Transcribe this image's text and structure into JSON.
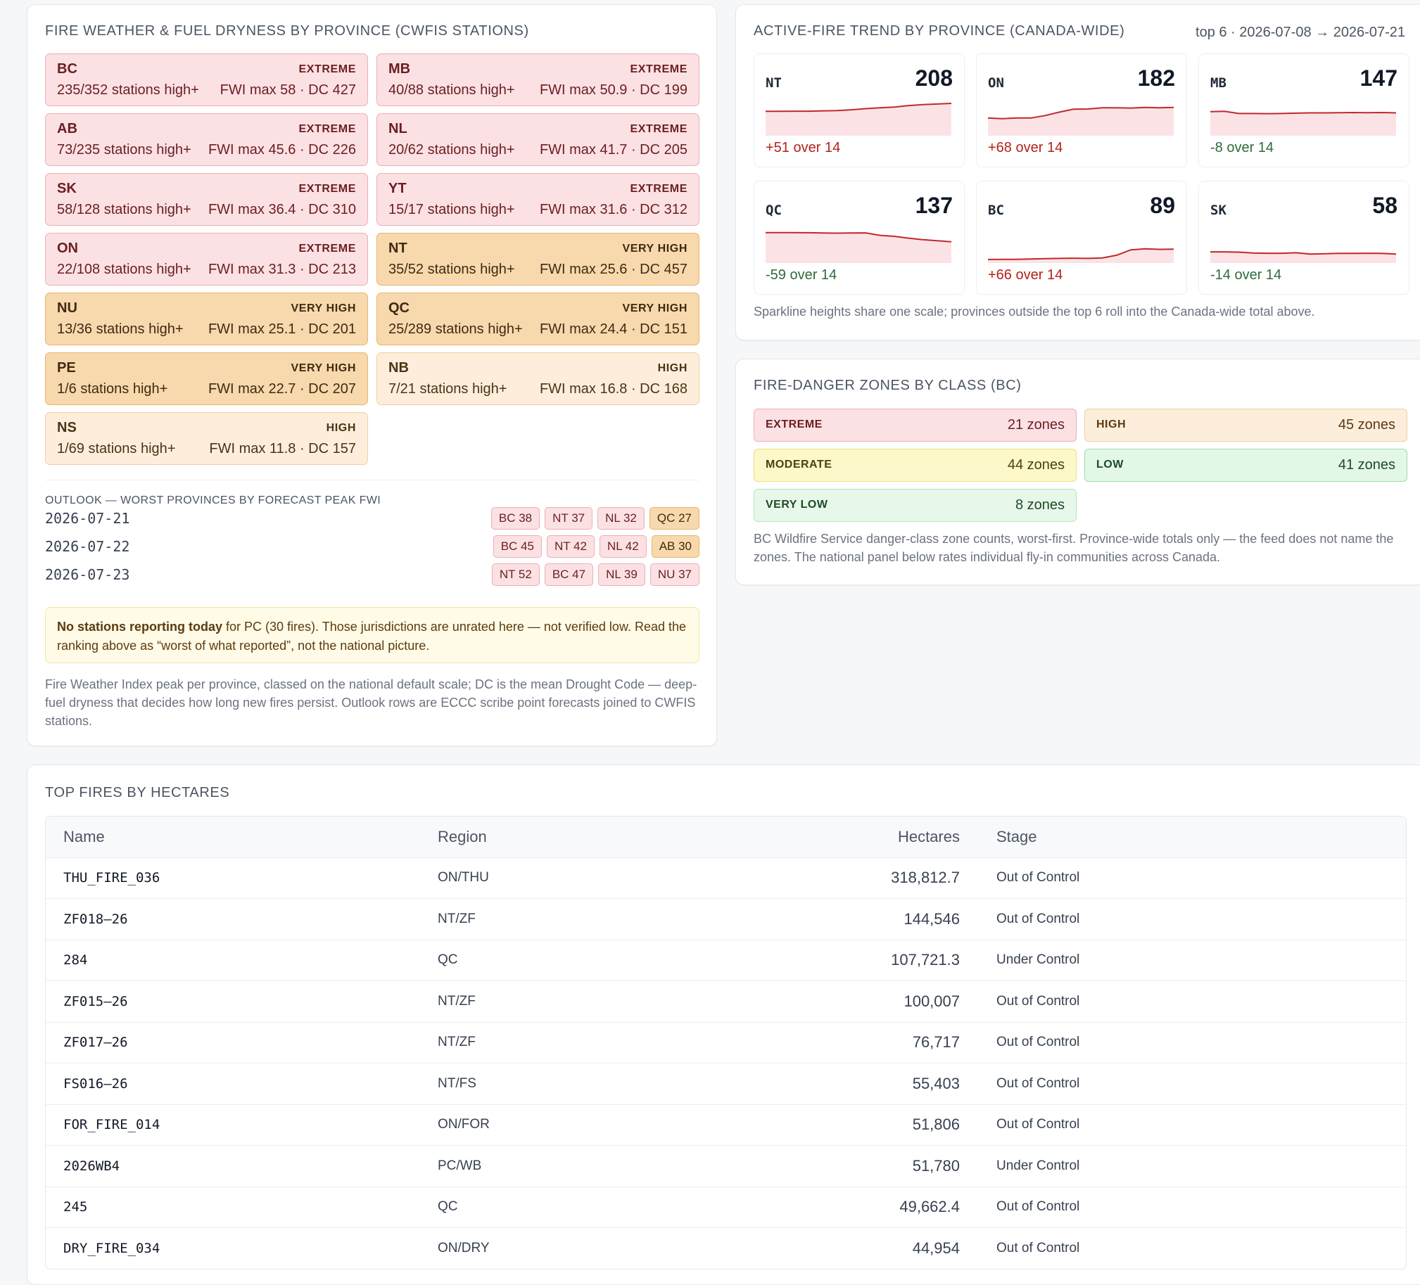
{
  "fire_weather": {
    "title": "FIRE WEATHER & FUEL DRYNESS BY PROVINCE (CWFIS STATIONS)",
    "provinces": [
      {
        "code": "BC",
        "class": "EXTREME",
        "stations": "235/352 stations high+",
        "fwi": "FWI max 58 · DC 427"
      },
      {
        "code": "MB",
        "class": "EXTREME",
        "stations": "40/88 stations high+",
        "fwi": "FWI max 50.9 · DC 199"
      },
      {
        "code": "AB",
        "class": "EXTREME",
        "stations": "73/235 stations high+",
        "fwi": "FWI max 45.6 · DC 226"
      },
      {
        "code": "NL",
        "class": "EXTREME",
        "stations": "20/62 stations high+",
        "fwi": "FWI max 41.7 · DC 205"
      },
      {
        "code": "SK",
        "class": "EXTREME",
        "stations": "58/128 stations high+",
        "fwi": "FWI max 36.4 · DC 310"
      },
      {
        "code": "YT",
        "class": "EXTREME",
        "stations": "15/17 stations high+",
        "fwi": "FWI max 31.6 · DC 312"
      },
      {
        "code": "ON",
        "class": "EXTREME",
        "stations": "22/108 stations high+",
        "fwi": "FWI max 31.3 · DC 213"
      },
      {
        "code": "NT",
        "class": "VERY HIGH",
        "stations": "35/52 stations high+",
        "fwi": "FWI max 25.6 · DC 457"
      },
      {
        "code": "NU",
        "class": "VERY HIGH",
        "stations": "13/36 stations high+",
        "fwi": "FWI max 25.1 · DC 201"
      },
      {
        "code": "QC",
        "class": "VERY HIGH",
        "stations": "25/289 stations high+",
        "fwi": "FWI max 24.4 · DC 151"
      },
      {
        "code": "PE",
        "class": "VERY HIGH",
        "stations": "1/6 stations high+",
        "fwi": "FWI max 22.7 · DC 207"
      },
      {
        "code": "NB",
        "class": "HIGH",
        "stations": "7/21 stations high+",
        "fwi": "FWI max 16.8 · DC 168"
      },
      {
        "code": "NS",
        "class": "HIGH",
        "stations": "1/69 stations high+",
        "fwi": "FWI max 11.8 · DC 157"
      }
    ],
    "outlook_title": "OUTLOOK — WORST PROVINCES BY FORECAST PEAK FWI",
    "outlook": [
      {
        "date": "2026-07-21",
        "chips": [
          {
            "label": "BC 38",
            "level": "extreme"
          },
          {
            "label": "NT 37",
            "level": "extreme"
          },
          {
            "label": "NL 32",
            "level": "extreme"
          },
          {
            "label": "QC 27",
            "level": "veryhigh"
          }
        ]
      },
      {
        "date": "2026-07-22",
        "chips": [
          {
            "label": "BC 45",
            "level": "extreme"
          },
          {
            "label": "NT 42",
            "level": "extreme"
          },
          {
            "label": "NL 42",
            "level": "extreme"
          },
          {
            "label": "AB 30",
            "level": "veryhigh"
          }
        ]
      },
      {
        "date": "2026-07-23",
        "chips": [
          {
            "label": "NT 52",
            "level": "extreme"
          },
          {
            "label": "BC 47",
            "level": "extreme"
          },
          {
            "label": "NL 39",
            "level": "extreme"
          },
          {
            "label": "NU 37",
            "level": "extreme"
          }
        ]
      }
    ],
    "notice_bold": "No stations reporting today",
    "notice_rest": " for PC (30 fires). Those jurisdictions are unrated here — not verified low. Read the ranking above as “worst of what reported”, not the national picture.",
    "footnote": "Fire Weather Index peak per province, classed on the national default scale; DC is the mean Drought Code — deep-fuel dryness that decides how long new fires persist. Outlook rows are ECCC scribe point forecasts joined to CWFIS stations."
  },
  "trend": {
    "title": "ACTIVE-FIRE TREND BY PROVINCE (CANADA-WIDE)",
    "range": "top 6 · 2026-07-08 → 2026-07-21",
    "note": "Sparkline heights share one scale; provinces outside the top 6 roll into the Canada-wide total above.",
    "colors": {
      "line": "#c0282d",
      "fill": "#fbe3e5",
      "up": "#b42318",
      "down": "#2f6b3a"
    },
    "provinces": [
      {
        "code": "NT",
        "value": "208",
        "delta": "+51 over 14",
        "dir": "up",
        "series": [
          157,
          157,
          158,
          158,
          160,
          162,
          167,
          174,
          180,
          184,
          194,
          200,
          204,
          208
        ]
      },
      {
        "code": "ON",
        "value": "182",
        "delta": "+68 over 14",
        "dir": "up",
        "series": [
          114,
          110,
          114,
          114,
          130,
          152,
          171,
          172,
          180,
          180,
          178,
          182,
          180,
          182
        ]
      },
      {
        "code": "MB",
        "value": "147",
        "delta": "-8 over 14",
        "dir": "down",
        "series": [
          155,
          157,
          143,
          143,
          142,
          143,
          145,
          147,
          147,
          148,
          149,
          148,
          149,
          147
        ]
      },
      {
        "code": "QC",
        "value": "137",
        "delta": "-59 over 14",
        "dir": "down",
        "series": [
          196,
          196,
          196,
          195,
          193,
          192,
          193,
          194,
          178,
          172,
          160,
          150,
          144,
          137
        ]
      },
      {
        "code": "BC",
        "value": "89",
        "delta": "+66 over 14",
        "dir": "up",
        "series": [
          23,
          24,
          24,
          26,
          28,
          30,
          31,
          30,
          33,
          50,
          85,
          92,
          88,
          89
        ]
      },
      {
        "code": "SK",
        "value": "58",
        "delta": "-14 over 14",
        "dir": "down",
        "series": [
          72,
          72,
          70,
          64,
          63,
          63,
          66,
          58,
          60,
          62,
          62,
          63,
          62,
          58
        ]
      }
    ]
  },
  "zones": {
    "title": "FIRE-DANGER ZONES BY CLASS (BC)",
    "items": [
      {
        "class": "EXTREME",
        "count": "21 zones",
        "style": "zone-extreme"
      },
      {
        "class": "HIGH",
        "count": "45 zones",
        "style": "zone-high"
      },
      {
        "class": "MODERATE",
        "count": "44 zones",
        "style": "zone-moderate"
      },
      {
        "class": "LOW",
        "count": "41 zones",
        "style": "zone-low"
      },
      {
        "class": "VERY LOW",
        "count": "8 zones",
        "style": "zone-verylow"
      }
    ],
    "note": "BC Wildfire Service danger-class zone counts, worst-first. Province-wide totals only — the feed does not name the zones. The national panel below rates individual fly-in communities across Canada."
  },
  "top_fires": {
    "title": "TOP FIRES BY HECTARES",
    "columns": {
      "name": "Name",
      "region": "Region",
      "hectares": "Hectares",
      "stage": "Stage"
    },
    "rows": [
      {
        "name": "THU_FIRE_036",
        "region": "ON/THU",
        "hectares": "318,812.7",
        "stage": "Out of Control"
      },
      {
        "name": "ZF018–26",
        "region": "NT/ZF",
        "hectares": "144,546",
        "stage": "Out of Control"
      },
      {
        "name": "284",
        "region": "QC",
        "hectares": "107,721.3",
        "stage": "Under Control"
      },
      {
        "name": "ZF015–26",
        "region": "NT/ZF",
        "hectares": "100,007",
        "stage": "Out of Control"
      },
      {
        "name": "ZF017–26",
        "region": "NT/ZF",
        "hectares": "76,717",
        "stage": "Out of Control"
      },
      {
        "name": "FS016–26",
        "region": "NT/FS",
        "hectares": "55,403",
        "stage": "Out of Control"
      },
      {
        "name": "FOR_FIRE_014",
        "region": "ON/FOR",
        "hectares": "51,806",
        "stage": "Out of Control"
      },
      {
        "name": "2026WB4",
        "region": "PC/WB",
        "hectares": "51,780",
        "stage": "Under Control"
      },
      {
        "name": "245",
        "region": "QC",
        "hectares": "49,662.4",
        "stage": "Out of Control"
      },
      {
        "name": "DRY_FIRE_034",
        "region": "ON/DRY",
        "hectares": "44,954",
        "stage": "Out of Control"
      }
    ]
  }
}
